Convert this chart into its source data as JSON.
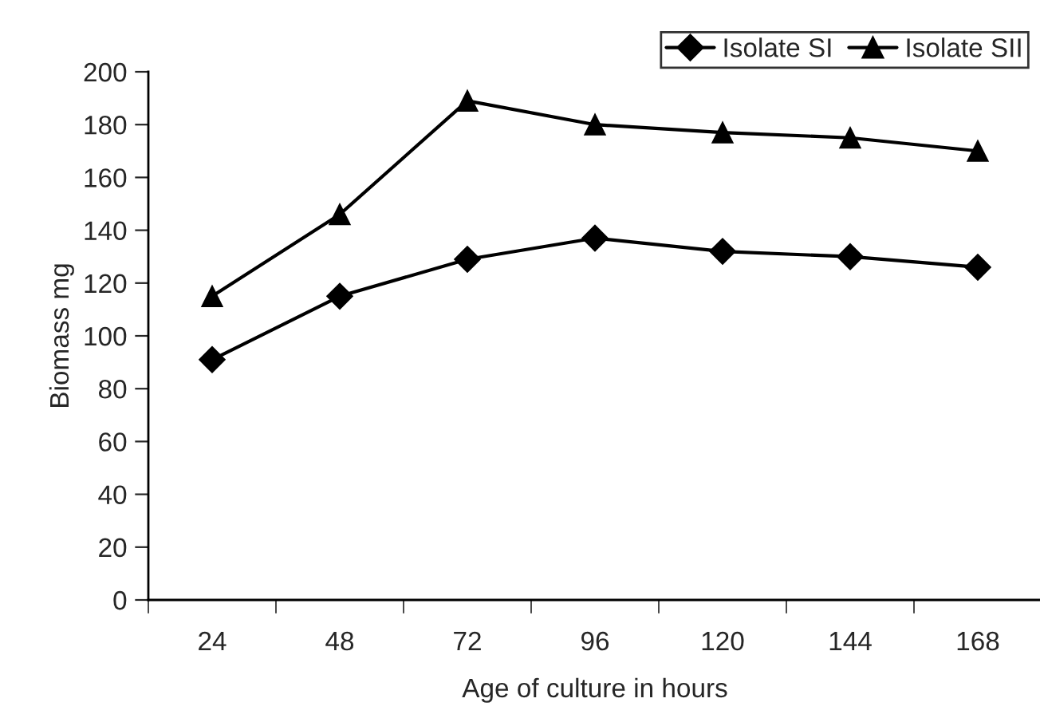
{
  "chart_data": {
    "type": "line",
    "xlabel": "Age of culture in hours",
    "ylabel": "Biomass mg",
    "categories": [
      "24",
      "48",
      "72",
      "96",
      "120",
      "144",
      "168"
    ],
    "series": [
      {
        "name": "Isolate SI",
        "color": "#000000",
        "marker": "diamond",
        "values": [
          91,
          115,
          129,
          137,
          132,
          130,
          126
        ]
      },
      {
        "name": "Isolate SII",
        "color": "#000000",
        "marker": "triangle",
        "values": [
          115,
          146,
          189,
          180,
          177,
          175,
          170
        ]
      }
    ],
    "ylim": [
      0,
      200
    ],
    "yticks": [
      0,
      20,
      40,
      60,
      80,
      100,
      120,
      140,
      160,
      180,
      200
    ],
    "grid": false,
    "legend": "top right",
    "line_style": "solid"
  }
}
